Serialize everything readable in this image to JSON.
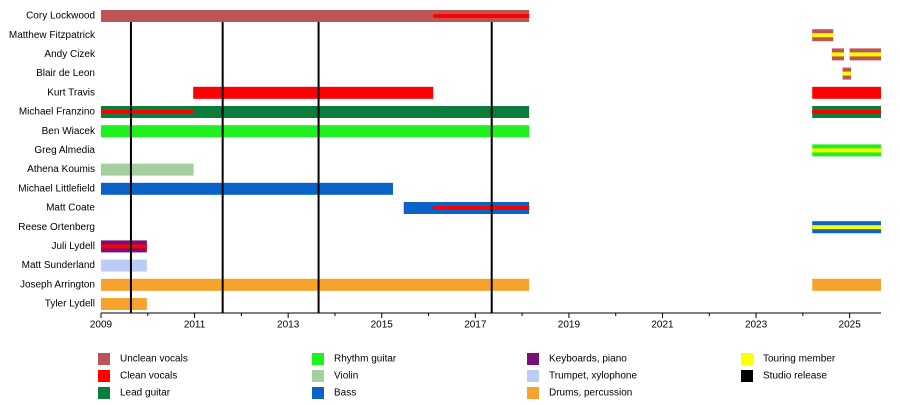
{
  "chart_data": {
    "type": "timeline",
    "categories": [
      "Cory Lockwood",
      "Matthew Fitzpatrick",
      "Andy Cizek",
      "Blair de Leon",
      "Kurt Travis",
      "Michael Franzino",
      "Ben Wiacek",
      "Greg Almedia",
      "Athena Koumis",
      "Michael Littlefield",
      "Matt Coate",
      "Reese Ortenberg",
      "Juli Lydell",
      "Matt Sunderland",
      "Joseph Arrington",
      "Tyler Lydell"
    ],
    "xlim": [
      2009,
      2025.67
    ],
    "xticks": [
      2009,
      2011,
      2013,
      2015,
      2017,
      2019,
      2021,
      2023,
      2025
    ],
    "xticks_minor": [
      2010,
      2012,
      2014,
      2016,
      2018,
      2020,
      2022,
      2024
    ],
    "series": [
      {
        "name": "Unclean vocals",
        "color": "#bd5555",
        "values": [
          [
            [
              2009,
              2018.15
            ]
          ],
          [
            [
              2024.2,
              2024.65
            ]
          ],
          [
            [
              2024.62,
              2024.88
            ],
            [
              2025.0,
              2025.67
            ]
          ],
          [
            [
              2024.85,
              2025.03
            ]
          ],
          null,
          null,
          null,
          null,
          null,
          null,
          null,
          null,
          null,
          null,
          null,
          null
        ]
      },
      {
        "name": "Clean vocals",
        "color": "#ff0000",
        "values": [
          null,
          null,
          null,
          null,
          [
            [
              2010.97,
              2016.1
            ],
            [
              2024.2,
              2025.67
            ]
          ],
          null,
          null,
          null,
          null,
          null,
          null,
          null,
          null,
          null,
          null,
          null
        ],
        "overlay": [
          [
            [
              2016.1,
              2018.15
            ]
          ],
          null,
          null,
          null,
          null,
          [
            [
              2009,
              2010.97
            ],
            [
              2024.2,
              2025.67
            ]
          ],
          null,
          null,
          null,
          null,
          [
            [
              2016.1,
              2018.15
            ]
          ],
          null,
          [
            [
              2009,
              2009.98
            ]
          ],
          null,
          null,
          null
        ]
      },
      {
        "name": "Lead guitar",
        "color": "#0b7d3a",
        "values": [
          null,
          null,
          null,
          null,
          null,
          [
            [
              2009,
              2018.15
            ],
            [
              2024.2,
              2025.67
            ]
          ],
          null,
          null,
          null,
          null,
          null,
          null,
          null,
          null,
          null,
          null
        ]
      },
      {
        "name": "Rhythm guitar",
        "color": "#1ff01f",
        "values": [
          null,
          null,
          null,
          null,
          null,
          null,
          [
            [
              2009,
              2018.15
            ]
          ],
          [
            [
              2024.2,
              2025.67
            ]
          ],
          null,
          null,
          null,
          null,
          null,
          null,
          null,
          null
        ]
      },
      {
        "name": "Violin",
        "color": "#a3d09c",
        "values": [
          null,
          null,
          null,
          null,
          null,
          null,
          null,
          null,
          [
            [
              2009,
              2010.98
            ]
          ],
          null,
          null,
          null,
          null,
          null,
          null,
          null
        ]
      },
      {
        "name": "Bass",
        "color": "#0b63c9",
        "values": [
          null,
          null,
          null,
          null,
          null,
          null,
          null,
          null,
          null,
          [
            [
              2009,
              2015.24
            ]
          ],
          [
            [
              2015.47,
              2018.15
            ]
          ],
          [
            [
              2024.2,
              2025.67
            ]
          ],
          null,
          null,
          null,
          null
        ]
      },
      {
        "name": "Keyboards, piano",
        "color": "#7a0f7a",
        "values": [
          null,
          null,
          null,
          null,
          null,
          null,
          null,
          null,
          null,
          null,
          null,
          null,
          [
            [
              2009,
              2009.98
            ]
          ],
          null,
          null,
          null
        ]
      },
      {
        "name": "Trumpet, xylophone",
        "color": "#bccdf5",
        "values": [
          null,
          null,
          null,
          null,
          null,
          null,
          null,
          null,
          null,
          null,
          null,
          null,
          null,
          [
            [
              2009,
              2009.98
            ]
          ],
          null,
          null
        ]
      },
      {
        "name": "Drums, percussion",
        "color": "#f7a22b",
        "values": [
          null,
          null,
          null,
          null,
          null,
          null,
          null,
          null,
          null,
          null,
          null,
          null,
          null,
          null,
          [
            [
              2009,
              2018.15
            ],
            [
              2024.2,
              2025.67
            ]
          ],
          [
            [
              2009,
              2009.98
            ]
          ]
        ]
      },
      {
        "name": "Touring member",
        "color": "#ffff00",
        "overlay": [
          null,
          [
            [
              2024.2,
              2024.65
            ]
          ],
          [
            [
              2024.62,
              2024.88
            ],
            [
              2025.0,
              2025.67
            ]
          ],
          [
            [
              2024.85,
              2025.03
            ]
          ],
          null,
          null,
          null,
          [
            [
              2024.2,
              2025.67
            ]
          ],
          null,
          null,
          null,
          [
            [
              2024.2,
              2025.67
            ]
          ],
          null,
          null,
          null,
          null
        ]
      },
      {
        "name": "Studio release",
        "color": "#000000",
        "lines": [
          2009.64,
          2011.6,
          2013.65,
          2017.35
        ]
      }
    ]
  }
}
